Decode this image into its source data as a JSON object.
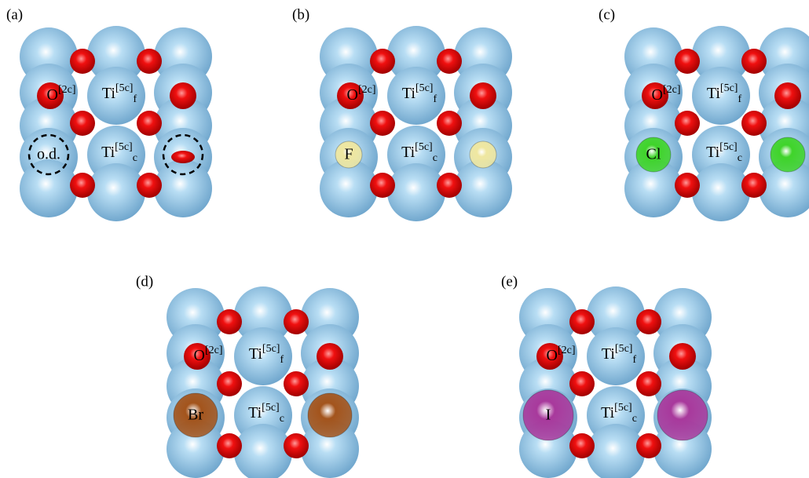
{
  "panels": [
    {
      "label": "(a)",
      "o2c": {
        "base": "O",
        "sup": "[2c]"
      },
      "ti_f": {
        "base": "Ti",
        "sup": "[5c]",
        "sub": "f"
      },
      "ti_c": {
        "base": "Ti",
        "sup": "[5c]",
        "sub": "c"
      },
      "site": {
        "label": "o.d.",
        "kind": "vacancy"
      }
    },
    {
      "label": "(b)",
      "o2c": {
        "base": "O",
        "sup": "[2c]"
      },
      "ti_f": {
        "base": "Ti",
        "sup": "[5c]",
        "sub": "f"
      },
      "ti_c": {
        "base": "Ti",
        "sup": "[5c]",
        "sub": "c"
      },
      "site": {
        "label": "F",
        "color": "#efe7a0"
      }
    },
    {
      "label": "(c)",
      "o2c": {
        "base": "O",
        "sup": "[2c]"
      },
      "ti_f": {
        "base": "Ti",
        "sup": "[5c]",
        "sub": "f"
      },
      "ti_c": {
        "base": "Ti",
        "sup": "[5c]",
        "sub": "c"
      },
      "site": {
        "label": "Cl",
        "color": "#3fd42a"
      }
    },
    {
      "label": "(d)",
      "o2c": {
        "base": "O",
        "sup": "[2c]"
      },
      "ti_f": {
        "base": "Ti",
        "sup": "[5c]",
        "sub": "f"
      },
      "ti_c": {
        "base": "Ti",
        "sup": "[5c]",
        "sub": "c"
      },
      "site": {
        "label": "Br",
        "color": "#a3541c"
      }
    },
    {
      "label": "(e)",
      "o2c": {
        "base": "O",
        "sup": "[2c]"
      },
      "ti_f": {
        "base": "Ti",
        "sup": "[5c]",
        "sub": "f"
      },
      "ti_c": {
        "base": "Ti",
        "sup": "[5c]",
        "sub": "c"
      },
      "site": {
        "label": "I",
        "color": "#a8399c"
      }
    }
  ]
}
